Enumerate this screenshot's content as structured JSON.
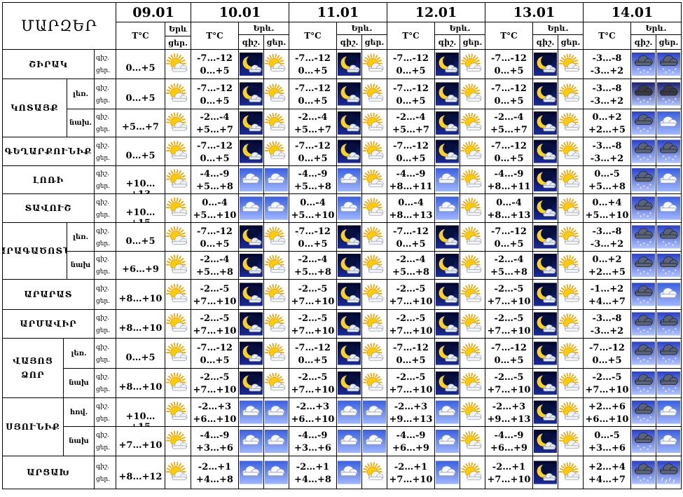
{
  "header": {
    "regions_label": "ՄԱՐԶԵՐ",
    "temp_label": "T°C",
    "weather_label": "Երև.",
    "weather_label_short": "Երև",
    "day_label": "ցեր.",
    "night_label": "գիշ.",
    "dates": [
      "09.01",
      "10.01",
      "11.01",
      "12.01",
      "13.01",
      "14.01"
    ]
  },
  "rows": [
    {
      "region": "ՇԻՐԱԿ",
      "sub": "",
      "d1": {
        "t": "0…+5",
        "ic": "sun-cloud"
      },
      "days": [
        {
          "n": "-7…-12",
          "d": "0…+5",
          "in": "moon",
          "id": "sun-cloud"
        },
        {
          "n": "-7…-12",
          "d": "0…+5",
          "in": "moon",
          "id": "sun-cloud"
        },
        {
          "n": "-7…-12",
          "d": "0…+5",
          "in": "moon",
          "id": "sun-cloud"
        },
        {
          "n": "-7…-12",
          "d": "0…+5",
          "in": "moon",
          "id": "sun-cloud"
        },
        {
          "n": "-3…-8",
          "d": "-3…+2",
          "in": "snow",
          "id": "snow"
        }
      ]
    },
    {
      "region": "ԿՈՏԱՅՔ",
      "sub": "լեռ.",
      "d1": {
        "t": "0…+5",
        "ic": "sun-cloud"
      },
      "days": [
        {
          "n": "-7…-12",
          "d": "0…+5",
          "in": "moon",
          "id": "sun-cloud"
        },
        {
          "n": "-7…-12",
          "d": "0…+5",
          "in": "moon",
          "id": "sun-cloud"
        },
        {
          "n": "-7…-12",
          "d": "0…+5",
          "in": "moon",
          "id": "sun-cloud"
        },
        {
          "n": "-7…-12",
          "d": "0…+5",
          "in": "moon",
          "id": "sun-cloud"
        },
        {
          "n": "-3…-8",
          "d": "-3…+2",
          "in": "snow-dark",
          "id": "snow-dark"
        }
      ]
    },
    {
      "region": "",
      "sub": "նախ.",
      "d1": {
        "t": "+5…+7",
        "ic": "sun-cloud"
      },
      "days": [
        {
          "n": "-2…-4",
          "d": "+5…+7",
          "in": "moon",
          "id": "sun-cloud"
        },
        {
          "n": "-2…-4",
          "d": "+5…+7",
          "in": "moon",
          "id": "sun-cloud"
        },
        {
          "n": "-2…-4",
          "d": "+5…+7",
          "in": "moon",
          "id": "sun-cloud"
        },
        {
          "n": "-2…-4",
          "d": "+5…+7",
          "in": "moon",
          "id": "sun-cloud"
        },
        {
          "n": "0…+2",
          "d": "+2…+5",
          "in": "snow",
          "id": "cloudy"
        }
      ]
    },
    {
      "region": "ԳԵՂԱՐՔՈՒՆԻՔ",
      "sub": "",
      "d1": {
        "t": "0…+5",
        "ic": "sun-cloud"
      },
      "days": [
        {
          "n": "-7…-12",
          "d": "0…+5",
          "in": "moon",
          "id": "sun-cloud"
        },
        {
          "n": "-7…-12",
          "d": "0…+5",
          "in": "moon",
          "id": "sun-cloud"
        },
        {
          "n": "-7…-12",
          "d": "0…+5",
          "in": "moon",
          "id": "sun-cloud"
        },
        {
          "n": "-7…-12",
          "d": "0…+5",
          "in": "moon",
          "id": "sun-cloud"
        },
        {
          "n": "-3…-8",
          "d": "-3…+2",
          "in": "snow",
          "id": "snow"
        }
      ]
    },
    {
      "region": "ԼՈՌԻ",
      "sub": "",
      "d1": {
        "t": "+10…+13",
        "ic": "sun-cloud"
      },
      "days": [
        {
          "n": "-4…-9",
          "d": "+5…+8",
          "in": "cloudy",
          "id": "cloudy"
        },
        {
          "n": "-4…-9",
          "d": "+5…+8",
          "in": "cloudy",
          "id": "sun-cloud"
        },
        {
          "n": "-4…-9",
          "d": "+8…+11",
          "in": "cloudy",
          "id": "sun-cloud"
        },
        {
          "n": "-4…-9",
          "d": "+8…+11",
          "in": "moon",
          "id": "sun-cloud"
        },
        {
          "n": "0…-5",
          "d": "+5…+8",
          "in": "snow",
          "id": "cloudy"
        }
      ]
    },
    {
      "region": "ՏԱՎՈՒՇ",
      "sub": "",
      "d1": {
        "t": "+10…+15",
        "ic": "sun-cloud"
      },
      "days": [
        {
          "n": "0…-4",
          "d": "+5…+10",
          "in": "cloudy",
          "id": "cloudy"
        },
        {
          "n": "0…-4",
          "d": "+5…+10",
          "in": "cloudy",
          "id": "sun-cloud"
        },
        {
          "n": "0…-4",
          "d": "+8…+13",
          "in": "cloudy",
          "id": "sun-cloud"
        },
        {
          "n": "0…-4",
          "d": "+8…+13",
          "in": "moon",
          "id": "sun-cloud"
        },
        {
          "n": "0…+4",
          "d": "+5…+10",
          "in": "snow",
          "id": "cloudy"
        }
      ]
    },
    {
      "region": "ԱՐԱԳԱԾՈՏՆ",
      "sub": "լեռ.",
      "d1": {
        "t": "0…+5",
        "ic": "sun-cloud"
      },
      "days": [
        {
          "n": "-7…-12",
          "d": "0…+5",
          "in": "moon",
          "id": "sun-cloud"
        },
        {
          "n": "-7…-12",
          "d": "0…+5",
          "in": "moon",
          "id": "sun-cloud"
        },
        {
          "n": "-7…-12",
          "d": "0…+5",
          "in": "moon",
          "id": "sun-cloud"
        },
        {
          "n": "-7…-12",
          "d": "0…+5",
          "in": "moon",
          "id": "sun-cloud"
        },
        {
          "n": "-3…-8",
          "d": "-3…+2",
          "in": "snow",
          "id": "snow"
        }
      ]
    },
    {
      "region": "",
      "sub": "նախ",
      "d1": {
        "t": "+6…+9",
        "ic": "sun-cloud"
      },
      "days": [
        {
          "n": "-2…-4",
          "d": "+5…+8",
          "in": "moon",
          "id": "sun-cloud"
        },
        {
          "n": "-2…-4",
          "d": "+5…+8",
          "in": "moon",
          "id": "sun-cloud"
        },
        {
          "n": "-2…-4",
          "d": "+5…+8",
          "in": "moon",
          "id": "sun-cloud"
        },
        {
          "n": "-2…-4",
          "d": "+5…+8",
          "in": "moon",
          "id": "sun-cloud"
        },
        {
          "n": "0…+2",
          "d": "+2…+5",
          "in": "snow",
          "id": "snow"
        }
      ]
    },
    {
      "region": "ԱՐԱՐԱՏ",
      "sub": "",
      "d1": {
        "t": "+8…+10",
        "ic": "sun-cloud"
      },
      "days": [
        {
          "n": "-2…-5",
          "d": "+7…+10",
          "in": "moon",
          "id": "sun-cloud"
        },
        {
          "n": "-2…-5",
          "d": "+7…+10",
          "in": "moon",
          "id": "sun-cloud"
        },
        {
          "n": "-2…-5",
          "d": "+7…+10",
          "in": "moon",
          "id": "sun-cloud"
        },
        {
          "n": "-2…-5",
          "d": "+7…+10",
          "in": "moon",
          "id": "sun-cloud"
        },
        {
          "n": "-1…+2",
          "d": "+4…+7",
          "in": "snow",
          "id": "cloudy"
        }
      ]
    },
    {
      "region": "ԱՐՄԱՎԻՐ",
      "sub": "",
      "d1": {
        "t": "+8…+10",
        "ic": "sun-cloud"
      },
      "days": [
        {
          "n": "-2…-5",
          "d": "+7…+10",
          "in": "moon",
          "id": "sun-cloud"
        },
        {
          "n": "-2…-5",
          "d": "+7…+10",
          "in": "moon",
          "id": "sun-cloud"
        },
        {
          "n": "-2…-5",
          "d": "+7…+10",
          "in": "moon",
          "id": "sun-cloud"
        },
        {
          "n": "-2…-5",
          "d": "+7…+10",
          "in": "moon",
          "id": "sun-cloud"
        },
        {
          "n": "-3…-8",
          "d": "-3…+2",
          "in": "snow",
          "id": "snow"
        }
      ]
    },
    {
      "region": "ՎԱՅՈՑ ՁՈՐ",
      "sub": "լեռ.",
      "d1": {
        "t": "0…+5",
        "ic": "sun-cloud"
      },
      "days": [
        {
          "n": "-7…-12",
          "d": "0…+5",
          "in": "moon",
          "id": "sun-cloud"
        },
        {
          "n": "-7…-12",
          "d": "0…+5",
          "in": "moon",
          "id": "sun-cloud"
        },
        {
          "n": "-7…-12",
          "d": "0…+5",
          "in": "moon",
          "id": "sun-cloud"
        },
        {
          "n": "-7…-12",
          "d": "0…+5",
          "in": "moon",
          "id": "sun-cloud"
        },
        {
          "n": "-7…-12",
          "d": "0…+5",
          "in": "snow",
          "id": "snow"
        }
      ]
    },
    {
      "region": "",
      "sub": "նախ",
      "d1": {
        "t": "+8…+10",
        "ic": "sun-cloud"
      },
      "days": [
        {
          "n": "-2…-5",
          "d": "+7…+10",
          "in": "moon",
          "id": "sun-cloud"
        },
        {
          "n": "-2…-5",
          "d": "+7…+10",
          "in": "moon",
          "id": "sun-cloud"
        },
        {
          "n": "-2…-5",
          "d": "+7…+10",
          "in": "moon",
          "id": "sun-cloud"
        },
        {
          "n": "-2…-5",
          "d": "+7…+10",
          "in": "moon",
          "id": "sun-cloud"
        },
        {
          "n": "-2…-5",
          "d": "+7…+10",
          "in": "snow",
          "id": "snow"
        }
      ]
    },
    {
      "region": "ՍՅՈՒՆԻՔ",
      "sub": "հով.",
      "d1": {
        "t": "+10…+15",
        "ic": "sun-cloud"
      },
      "days": [
        {
          "n": "-2…+3",
          "d": "+6…+10",
          "in": "cloudy",
          "id": "cloudy"
        },
        {
          "n": "-2…+3",
          "d": "+6…+10",
          "in": "cloudy",
          "id": "cloudy"
        },
        {
          "n": "-2…+3",
          "d": "+9…+13",
          "in": "cloudy",
          "id": "sun-cloud"
        },
        {
          "n": "-2…+3",
          "d": "+9…+13",
          "in": "moon",
          "id": "sun-cloud"
        },
        {
          "n": "+2…+6",
          "d": "+6…+10",
          "in": "snow",
          "id": "cloudy"
        }
      ]
    },
    {
      "region": "",
      "sub": "նախ",
      "d1": {
        "t": "+7…+10",
        "ic": "sun-cloud"
      },
      "days": [
        {
          "n": "-4…-9",
          "d": "+3…+6",
          "in": "cloudy",
          "id": "cloudy"
        },
        {
          "n": "-4…-9",
          "d": "+3…+6",
          "in": "cloudy",
          "id": "cloudy"
        },
        {
          "n": "-4…-9",
          "d": "+6…+9",
          "in": "cloudy",
          "id": "sun-cloud"
        },
        {
          "n": "-4…-9",
          "d": "+6…+9",
          "in": "moon",
          "id": "sun-cloud"
        },
        {
          "n": "0…-5",
          "d": "+3…+6",
          "in": "snow",
          "id": "cloudy"
        }
      ]
    },
    {
      "region": "ԱՐՑԱԽ",
      "sub": "",
      "d1": {
        "t": "+8…+12",
        "ic": "sun-cloud"
      },
      "days": [
        {
          "n": "-2…+1",
          "d": "+4…+8",
          "in": "cloudy",
          "id": "cloudy"
        },
        {
          "n": "-2…+1",
          "d": "+4…+8",
          "in": "cloudy",
          "id": "sun-cloud"
        },
        {
          "n": "-2…+1",
          "d": "+7…+10",
          "in": "cloudy",
          "id": "sun-cloud"
        },
        {
          "n": "-2…+1",
          "d": "+7…+10",
          "in": "moon",
          "id": "sun-cloud"
        },
        {
          "n": "+2…+4",
          "d": "+4…+7",
          "in": "snow",
          "id": "rain"
        }
      ]
    }
  ]
}
